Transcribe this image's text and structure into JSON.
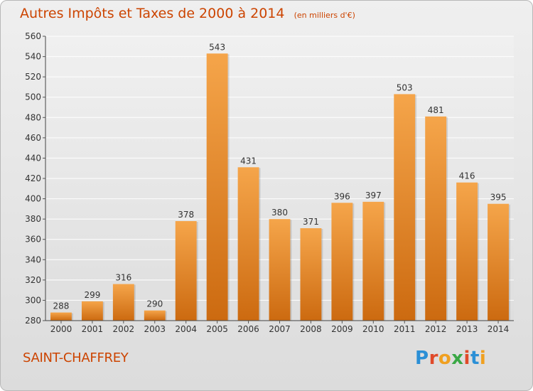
{
  "header": {
    "title": "Autres Impôts et Taxes de 2000 à 2014",
    "subtitle": "(en milliers d'€)"
  },
  "footer": {
    "town": "SAINT-CHAFFREY",
    "logo_letters": [
      "P",
      "r",
      "o",
      "x",
      "i",
      "t",
      "i"
    ],
    "logo_colors": [
      "#2a8fd6",
      "#e04a2a",
      "#f0a020",
      "#3aa845",
      "#e04a2a",
      "#2a8fd6",
      "#f0a020"
    ]
  },
  "chart_data": {
    "type": "bar",
    "categories": [
      "2000",
      "2001",
      "2002",
      "2003",
      "2004",
      "2005",
      "2006",
      "2007",
      "2008",
      "2009",
      "2010",
      "2011",
      "2012",
      "2013",
      "2014"
    ],
    "values": [
      288,
      299,
      316,
      290,
      378,
      543,
      431,
      380,
      371,
      396,
      397,
      503,
      481,
      416,
      395
    ],
    "title": "Autres Impôts et Taxes de 2000 à 2014",
    "subtitle": "(en milliers d'€)",
    "ylim": [
      280,
      560
    ],
    "yticks": [
      280,
      300,
      320,
      340,
      360,
      380,
      400,
      420,
      440,
      460,
      480,
      500,
      520,
      540,
      560
    ],
    "grid": true,
    "bar_color_top": "#f5a54a",
    "bar_color_bottom": "#cc6a10"
  }
}
